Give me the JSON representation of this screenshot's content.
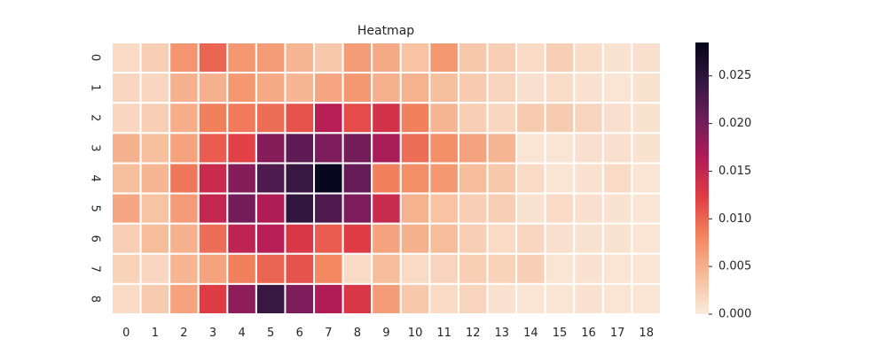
{
  "chart_data": {
    "type": "heatmap",
    "title": "Heatmap",
    "xlabel": "",
    "ylabel": "",
    "x_categories": [
      "0",
      "1",
      "2",
      "3",
      "4",
      "5",
      "6",
      "7",
      "8",
      "9",
      "10",
      "11",
      "12",
      "13",
      "14",
      "15",
      "16",
      "17",
      "18"
    ],
    "y_categories": [
      "0",
      "1",
      "2",
      "3",
      "4",
      "5",
      "6",
      "7",
      "8"
    ],
    "values": [
      [
        0.0015,
        0.0025,
        0.007,
        0.01,
        0.0068,
        0.0065,
        0.0045,
        0.003,
        0.0065,
        0.0055,
        0.0035,
        0.0068,
        0.003,
        0.0025,
        0.0015,
        0.0025,
        0.0012,
        0.0008,
        0.001
      ],
      [
        0.0018,
        0.0018,
        0.005,
        0.005,
        0.0068,
        0.0055,
        0.0045,
        0.0058,
        0.0068,
        0.005,
        0.0048,
        0.0038,
        0.0028,
        0.002,
        0.001,
        0.0012,
        0.0008,
        0.0005,
        0.0008
      ],
      [
        0.0018,
        0.0025,
        0.0052,
        0.0085,
        0.0088,
        0.0095,
        0.011,
        0.016,
        0.0115,
        0.0135,
        0.0085,
        0.0045,
        0.0025,
        0.0018,
        0.0028,
        0.0028,
        0.002,
        0.001,
        0.0008
      ],
      [
        0.005,
        0.0038,
        0.006,
        0.0105,
        0.012,
        0.019,
        0.0215,
        0.0195,
        0.02,
        0.017,
        0.0095,
        0.0075,
        0.006,
        0.0045,
        0.0005,
        0.0005,
        0.001,
        0.001,
        0.0008
      ],
      [
        0.0038,
        0.0045,
        0.009,
        0.0145,
        0.019,
        0.0225,
        0.024,
        0.028,
        0.021,
        0.0085,
        0.0075,
        0.0068,
        0.004,
        0.003,
        0.0015,
        0.0005,
        0.0008,
        0.0015,
        0.0005
      ],
      [
        0.0058,
        0.0035,
        0.0065,
        0.015,
        0.02,
        0.0165,
        0.0245,
        0.0225,
        0.0195,
        0.0145,
        0.0048,
        0.0035,
        0.0025,
        0.0025,
        0.0008,
        0.0015,
        0.001,
        0.0008,
        0.0005
      ],
      [
        0.0025,
        0.004,
        0.005,
        0.0095,
        0.0155,
        0.016,
        0.013,
        0.0105,
        0.0125,
        0.006,
        0.005,
        0.004,
        0.0025,
        0.0015,
        0.0018,
        0.001,
        0.0008,
        0.0008,
        0.0005
      ],
      [
        0.0022,
        0.0018,
        0.0045,
        0.006,
        0.0085,
        0.01,
        0.011,
        0.008,
        0.0015,
        0.004,
        0.0015,
        0.002,
        0.0025,
        0.0022,
        0.0025,
        0.0005,
        0.0008,
        0.0005,
        0.0005
      ],
      [
        0.0015,
        0.0028,
        0.006,
        0.0125,
        0.0185,
        0.024,
        0.0195,
        0.0165,
        0.013,
        0.0065,
        0.003,
        0.0015,
        0.002,
        0.0008,
        0.0005,
        0.0005,
        0.0008,
        0.0005,
        0.0005
      ]
    ],
    "vmin": 0.0,
    "vmax": 0.0285,
    "colorbar_ticks": [
      0.0,
      0.005,
      0.01,
      0.015,
      0.02,
      0.025
    ],
    "colorbar_tick_labels": [
      "0.000",
      "0.005",
      "0.010",
      "0.015",
      "0.020",
      "0.025"
    ],
    "colormap": "rocket_r",
    "colormap_stops": [
      "#faebdd",
      "#f6bc9a",
      "#f3865f",
      "#e13e44",
      "#b41c56",
      "#6f1d5c",
      "#32173f",
      "#03051a"
    ],
    "grid": false,
    "colorbar_placement": "right"
  }
}
